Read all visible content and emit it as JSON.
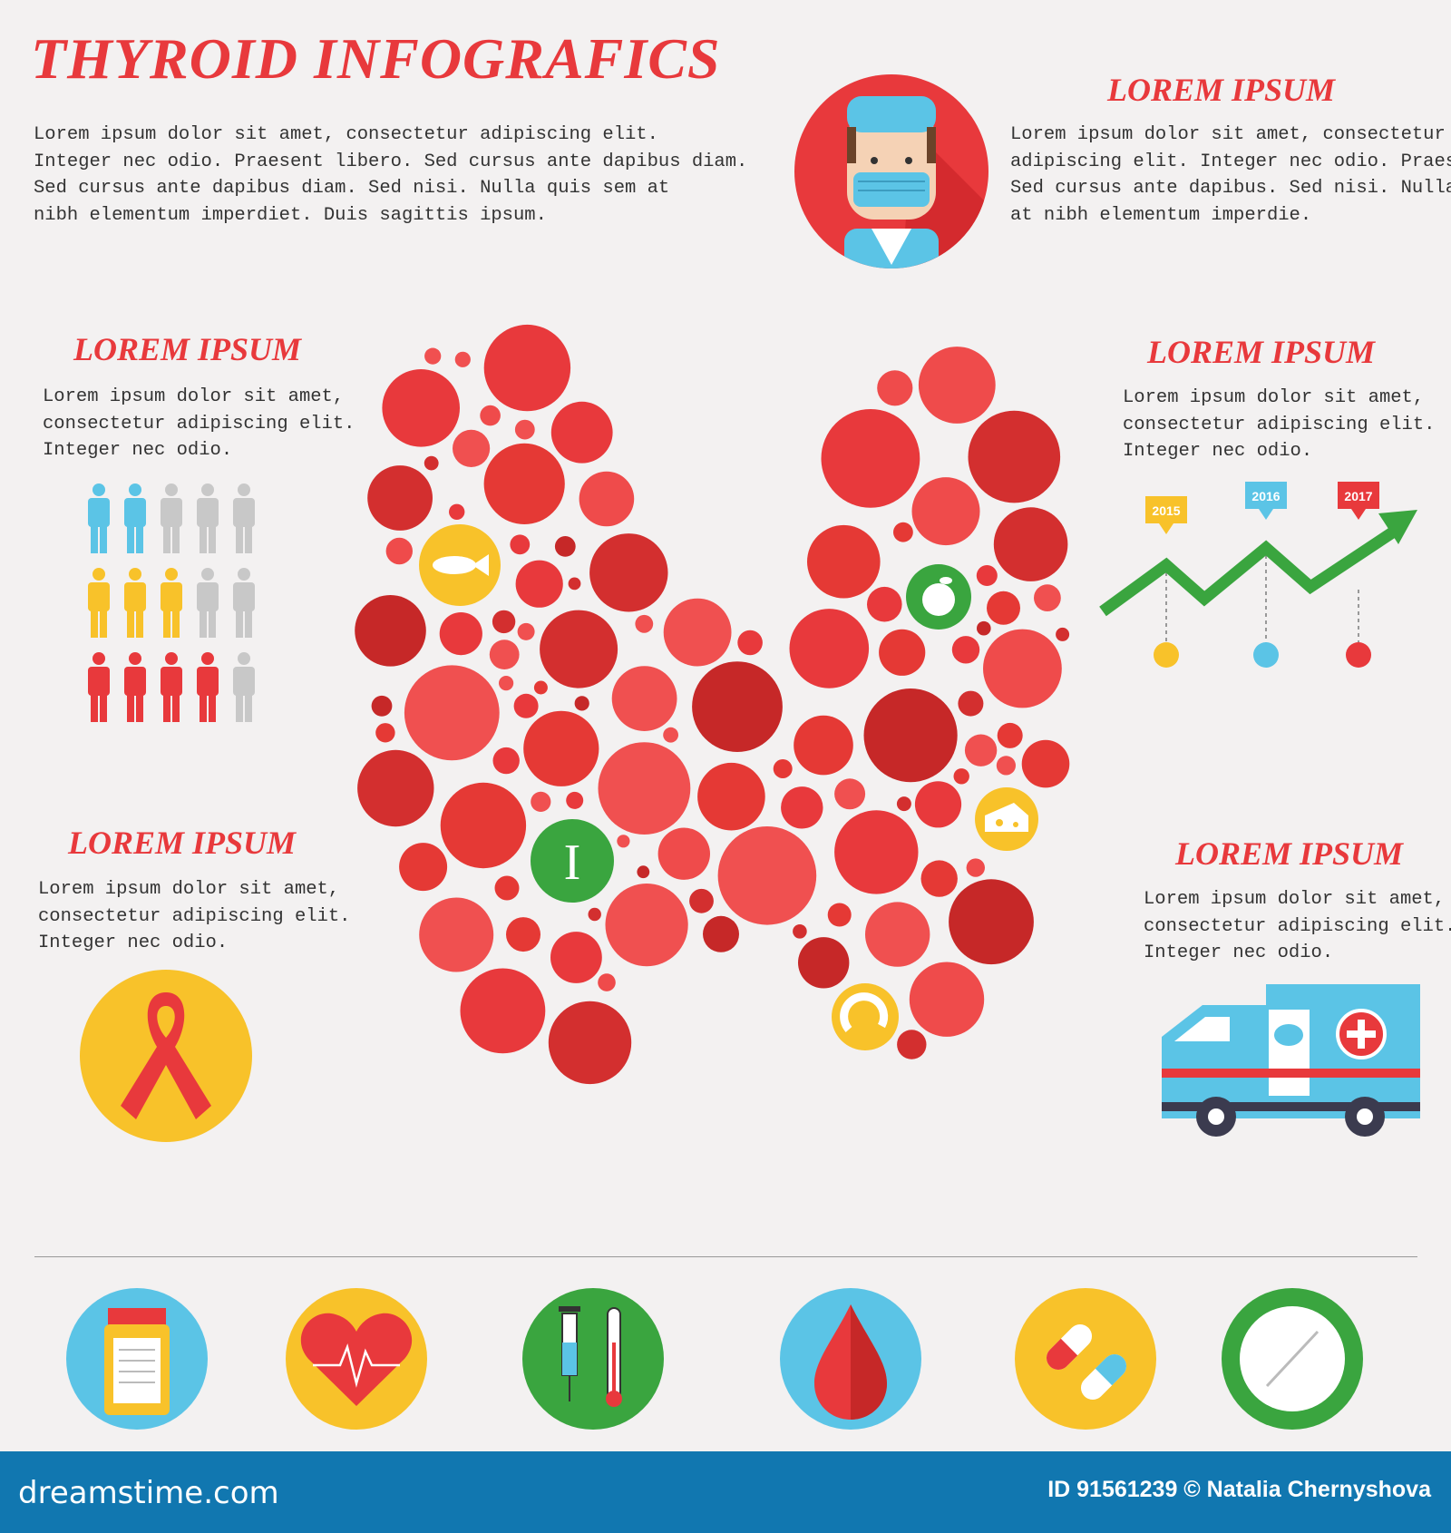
{
  "title": "THYROID INFOGRAFICS",
  "intro": "Lorem ipsum dolor sit amet, consectetur adipiscing elit.\nInteger nec odio. Praesent libero. Sed cursus ante dapibus diam.\nSed cursus ante dapibus diam. Sed nisi. Nulla quis sem at\nnibh elementum imperdiet. Duis sagittis ipsum.",
  "sections": [
    {
      "heading": "LOREM IPSUM",
      "text": "Lorem ipsum dolor sit amet, consectetur\nadipiscing elit. Integer nec odio. Praesent\nSed cursus ante dapibus. Sed nisi. Nulla qui\nat nibh elementum imperdie.",
      "icon": "doctor-icon"
    },
    {
      "heading": "LOREM IPSUM",
      "text": "Lorem ipsum dolor sit amet,\nconsectetur adipiscing elit.\nInteger nec odio.",
      "icon": "people-statistics-icon"
    },
    {
      "heading": "LOREM IPSUM",
      "text": "Lorem ipsum dolor sit amet,\nconsectetur adipiscing elit.\nInteger nec odio.",
      "icon": "growth-chart-icon"
    },
    {
      "heading": "LOREM IPSUM",
      "text": "Lorem ipsum dolor sit amet,\nconsectetur adipiscing elit.\nInteger nec odio.",
      "icon": "awareness-ribbon-icon"
    },
    {
      "heading": "LOREM IPSUM",
      "text": "Lorem ipsum dolor sit amet,\nconsectetur adipiscing elit.\nInteger nec odio.",
      "icon": "ambulance-icon"
    }
  ],
  "people_grid": [
    {
      "color": "#5bc4e6",
      "filled": 2,
      "total": 5
    },
    {
      "color": "#f8c22a",
      "filled": 3,
      "total": 5
    },
    {
      "color": "#e8393c",
      "filled": 4,
      "total": 5
    }
  ],
  "timeline": [
    {
      "year": "2015",
      "color": "#f8c22a"
    },
    {
      "year": "2016",
      "color": "#5bc4e6"
    },
    {
      "year": "2017",
      "color": "#e8393c"
    }
  ],
  "thyroid_icons": [
    "fish-icon",
    "apple-icon",
    "iodine-icon",
    "cheese-icon",
    "shrimp-icon"
  ],
  "bottom_icons": [
    "pill-bottle-icon",
    "heart-pulse-icon",
    "syringe-thermometer-icon",
    "blood-drop-icon",
    "capsules-icon",
    "tablet-icon"
  ],
  "colors": {
    "accent": "#e8393c",
    "yellow": "#f8c22a",
    "blue": "#5bc4e6",
    "green": "#3aa53f",
    "footer": "#1177b0",
    "background": "#f3f1f1"
  },
  "footer": {
    "brand": "dreamstime.com",
    "credit": "ID 91561239 © Natalia Chernyshova"
  }
}
